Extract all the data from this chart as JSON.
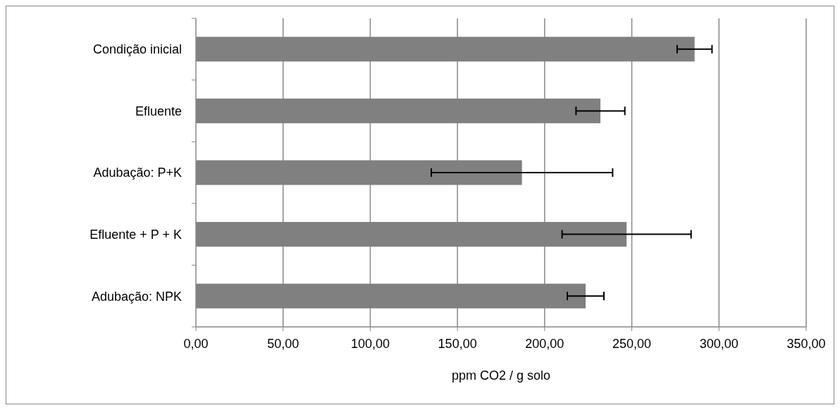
{
  "chart_data": {
    "type": "bar",
    "orientation": "horizontal",
    "xlabel": "ppm CO2 / g solo",
    "categories": [
      "Condição inicial",
      "Efluente",
      "Adubação: P+K",
      "Efluente + P + K",
      "Adubação: NPK"
    ],
    "values": [
      286,
      232,
      187,
      247,
      223.5
    ],
    "errors": [
      10,
      14,
      52,
      37,
      10.5
    ],
    "color": "#808080",
    "xlim": [
      0,
      350
    ],
    "xticks": [
      {
        "value": 0,
        "label": "0,00"
      },
      {
        "value": 50,
        "label": "50,00"
      },
      {
        "value": 100,
        "label": "100,00"
      },
      {
        "value": 150,
        "label": "150,00"
      },
      {
        "value": 200,
        "label": "200,00"
      },
      {
        "value": 250,
        "label": "250,00"
      },
      {
        "value": 300,
        "label": "300,00"
      },
      {
        "value": 350,
        "label": "350,00"
      }
    ],
    "grid": "x"
  }
}
